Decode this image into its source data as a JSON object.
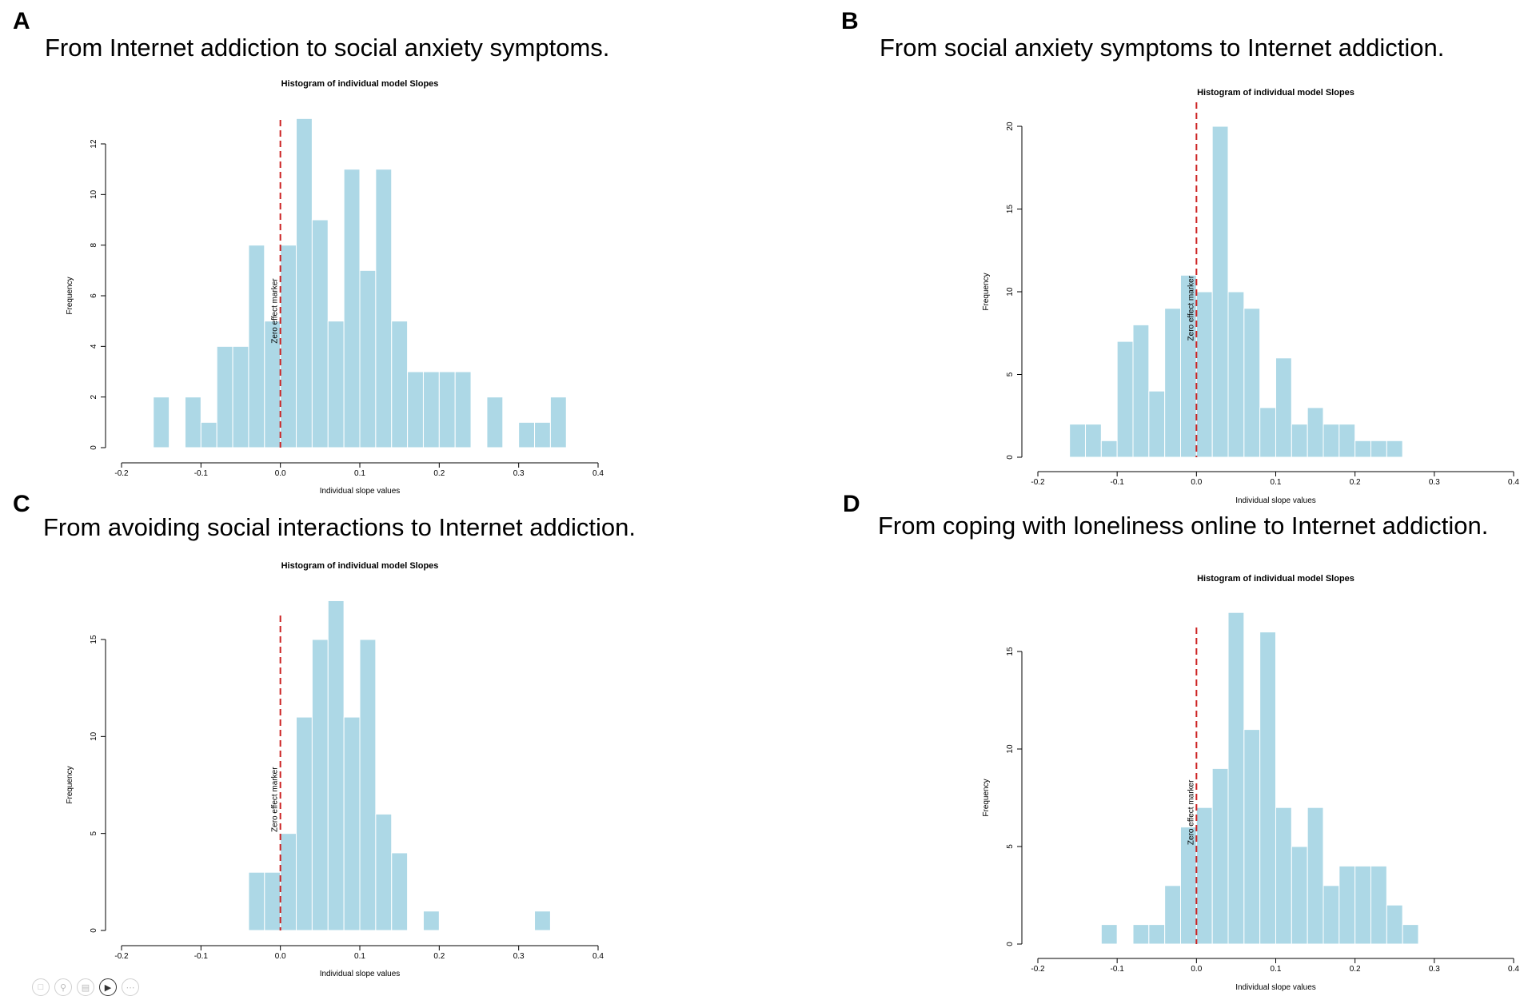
{
  "panels": [
    {
      "letter": "A",
      "title": "From Internet addiction to social anxiety symptoms."
    },
    {
      "letter": "B",
      "title": "From social anxiety symptoms to Internet addiction."
    },
    {
      "letter": "C",
      "title": "From avoiding social interactions to Internet addiction."
    },
    {
      "letter": "D",
      "title": "From coping with loneliness online to Internet addiction."
    }
  ],
  "toolbar": {
    "icons": [
      "save-icon",
      "zoom-icon",
      "fit-icon",
      "video-icon",
      "more-icon"
    ]
  },
  "colors": {
    "bar": "#add8e6",
    "zero_line": "#cc2222"
  },
  "chart_data": [
    {
      "type": "bar",
      "title": "Histogram of individual model Slopes",
      "xlabel": "Individual slope values",
      "ylabel": "Frequency",
      "marker_label": "Zero effect marker",
      "marker_x": 0.0,
      "xlim": [
        -0.2,
        0.4
      ],
      "xticks": [
        -0.2,
        -0.1,
        0.0,
        0.1,
        0.2,
        0.3,
        0.4
      ],
      "xtick_labels": [
        "-0.2",
        "-0.1",
        "0.0",
        "0.1",
        "0.2",
        "0.3",
        "0.4"
      ],
      "ylim": [
        0,
        12
      ],
      "yticks": [
        0,
        2,
        4,
        6,
        8,
        10,
        12
      ],
      "bin_width": 0.02,
      "bin_starts": [
        -0.16,
        -0.14,
        -0.12,
        -0.1,
        -0.08,
        -0.06,
        -0.04,
        -0.02,
        0.0,
        0.02,
        0.04,
        0.06,
        0.08,
        0.1,
        0.12,
        0.14,
        0.16,
        0.18,
        0.2,
        0.22,
        0.24,
        0.26,
        0.28,
        0.3,
        0.32,
        0.34
      ],
      "values": [
        2,
        0,
        2,
        1,
        4,
        4,
        8,
        5,
        8,
        13,
        9,
        5,
        11,
        7,
        11,
        5,
        3,
        3,
        3,
        3,
        0,
        2,
        0,
        1,
        1,
        2
      ]
    },
    {
      "type": "bar",
      "title": "Histogram of individual model Slopes",
      "xlabel": "Individual slope values",
      "ylabel": "Frequency",
      "marker_label": "Zero effect marker",
      "marker_x": 0.0,
      "xlim": [
        -0.2,
        0.4
      ],
      "xticks": [
        -0.2,
        -0.1,
        0.0,
        0.1,
        0.2,
        0.3,
        0.4
      ],
      "xtick_labels": [
        "-0.2",
        "-0.1",
        "0.0",
        "0.1",
        "0.2",
        "0.3",
        "0.4"
      ],
      "ylim": [
        0,
        20
      ],
      "yticks": [
        0,
        5,
        10,
        15,
        20
      ],
      "bin_width": 0.02,
      "bin_starts": [
        -0.16,
        -0.14,
        -0.12,
        -0.1,
        -0.08,
        -0.06,
        -0.04,
        -0.02,
        0.0,
        0.02,
        0.04,
        0.06,
        0.08,
        0.1,
        0.12,
        0.14,
        0.16,
        0.18,
        0.2,
        0.22,
        0.24
      ],
      "values": [
        2,
        2,
        1,
        7,
        8,
        4,
        9,
        11,
        10,
        20,
        10,
        9,
        3,
        6,
        2,
        3,
        2,
        2,
        1,
        1,
        1
      ]
    },
    {
      "type": "bar",
      "title": "Histogram of individual model Slopes",
      "xlabel": "Individual slope values",
      "ylabel": "Frequency",
      "marker_label": "Zero effect marker",
      "marker_x": 0.0,
      "xlim": [
        -0.2,
        0.4
      ],
      "xticks": [
        -0.2,
        -0.1,
        0.0,
        0.1,
        0.2,
        0.3,
        0.4
      ],
      "xtick_labels": [
        "-0.2",
        "-0.1",
        "0.0",
        "0.1",
        "0.2",
        "0.3",
        "0.4"
      ],
      "ylim": [
        0,
        15
      ],
      "yticks": [
        0,
        5,
        10,
        15
      ],
      "bin_width": 0.02,
      "bin_starts": [
        -0.04,
        -0.02,
        0.0,
        0.02,
        0.04,
        0.06,
        0.08,
        0.1,
        0.12,
        0.14,
        0.16,
        0.18,
        0.2,
        0.22,
        0.24,
        0.26,
        0.28,
        0.3,
        0.32
      ],
      "values": [
        3,
        3,
        5,
        11,
        15,
        17,
        11,
        15,
        6,
        4,
        0,
        1,
        0,
        0,
        0,
        0,
        0,
        0,
        1
      ]
    },
    {
      "type": "bar",
      "title": "Histogram of individual model Slopes",
      "xlabel": "Individual slope values",
      "ylabel": "Frequency",
      "marker_label": "Zero effect marker",
      "marker_x": 0.0,
      "xlim": [
        -0.2,
        0.4
      ],
      "xticks": [
        -0.2,
        -0.1,
        0.0,
        0.1,
        0.2,
        0.3,
        0.4
      ],
      "xtick_labels": [
        "-0.2",
        "-0.1",
        "0.0",
        "0.1",
        "0.2",
        "0.3",
        "0.4"
      ],
      "ylim": [
        0,
        15
      ],
      "yticks": [
        0,
        5,
        10,
        15
      ],
      "bin_width": 0.02,
      "bin_starts": [
        -0.12,
        -0.1,
        -0.08,
        -0.06,
        -0.04,
        -0.02,
        0.0,
        0.02,
        0.04,
        0.06,
        0.08,
        0.1,
        0.12,
        0.14,
        0.16,
        0.18,
        0.2,
        0.22,
        0.24,
        0.26
      ],
      "values": [
        1,
        0,
        1,
        1,
        3,
        6,
        7,
        9,
        17,
        11,
        16,
        7,
        5,
        7,
        3,
        4,
        4,
        4,
        2,
        1
      ]
    }
  ]
}
